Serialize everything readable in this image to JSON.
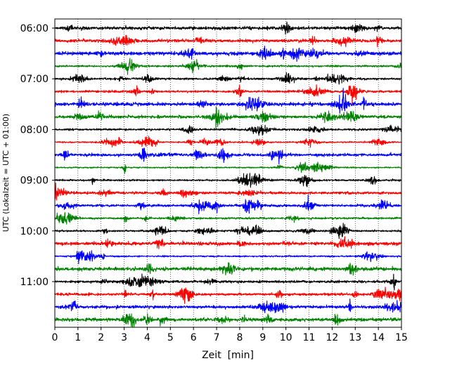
{
  "chart_data": {
    "type": "line",
    "title": "",
    "xlabel": "Zeit  [min]",
    "ylabel": "UTC (Lokalzeit = UTC + 01:00)",
    "xlim": [
      0,
      15
    ],
    "x_ticks": [
      "0",
      "1",
      "2",
      "3",
      "4",
      "5",
      "6",
      "7",
      "8",
      "9",
      "10",
      "11",
      "12",
      "13",
      "14",
      "15"
    ],
    "y_ticks": [
      "06:00",
      "07:00",
      "08:00",
      "09:00",
      "10:00",
      "11:00"
    ],
    "grid": "vertical dotted lines at each minute",
    "trace_interval_minutes": 15,
    "traces": [
      {
        "start": "06:00",
        "color": "#000000"
      },
      {
        "start": "06:15",
        "color": "#ff0000"
      },
      {
        "start": "06:30",
        "color": "#0000ff"
      },
      {
        "start": "06:45",
        "color": "#008000"
      },
      {
        "start": "07:00",
        "color": "#000000"
      },
      {
        "start": "07:15",
        "color": "#ff0000"
      },
      {
        "start": "07:30",
        "color": "#0000ff"
      },
      {
        "start": "07:45",
        "color": "#008000"
      },
      {
        "start": "08:00",
        "color": "#000000"
      },
      {
        "start": "08:15",
        "color": "#ff0000"
      },
      {
        "start": "08:30",
        "color": "#0000ff"
      },
      {
        "start": "08:45",
        "color": "#008000"
      },
      {
        "start": "09:00",
        "color": "#000000"
      },
      {
        "start": "09:15",
        "color": "#ff0000"
      },
      {
        "start": "09:30",
        "color": "#0000ff"
      },
      {
        "start": "09:45",
        "color": "#008000"
      },
      {
        "start": "10:00",
        "color": "#000000"
      },
      {
        "start": "10:15",
        "color": "#ff0000"
      },
      {
        "start": "10:30",
        "color": "#0000ff"
      },
      {
        "start": "10:45",
        "color": "#008000"
      },
      {
        "start": "11:00",
        "color": "#000000"
      },
      {
        "start": "11:15",
        "color": "#ff0000"
      },
      {
        "start": "11:30",
        "color": "#0000ff"
      },
      {
        "start": "11:45",
        "color": "#008000"
      }
    ]
  }
}
